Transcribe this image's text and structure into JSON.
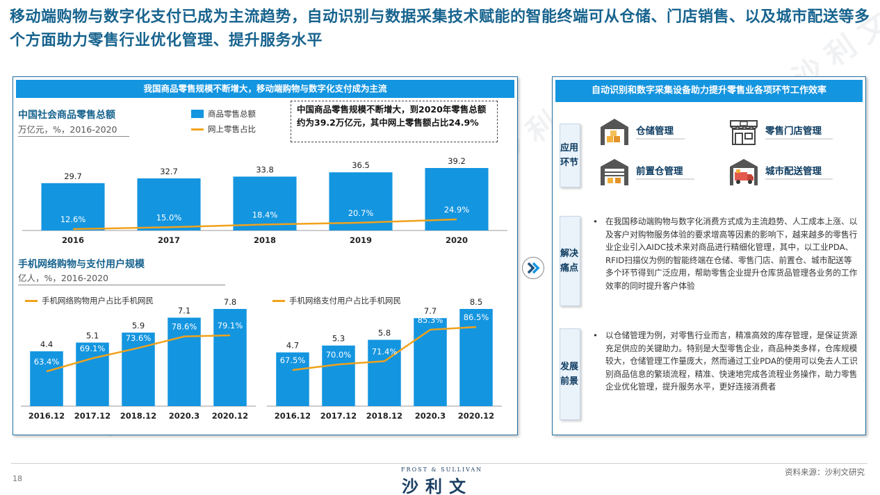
{
  "title": "移动端购物与数字化支付已成为主流趋势，自动识别与数据采集技术赋能的智能终端可从仓储、门店销售、以及城市配送等多个方面助力零售行业优化管理、提升服务水平",
  "left_panel": {
    "header": "我国商品零售规模不断增大，移动端购物与数字化支付成为主流",
    "chart1_title": "中国社会商品零售总额",
    "chart1_sub": "万亿元，%，2016-2020",
    "legend_bar": "商品零售总额",
    "legend_line": "网上零售占比",
    "note": "中国商品零售规模不断增大，到2020年零售总额约为39.2万亿元，其中网上零售额占比24.9%",
    "chart2_title": "手机网络购物与支付用户规模",
    "chart2_sub": "亿人，%，2016-2020",
    "legend_mobile_shop": "手机网络购物用户占比手机网民",
    "legend_mobile_pay": "手机网络支付用户占比手机网民"
  },
  "chart_data": [
    {
      "type": "bar",
      "title": "中国社会商品零售总额",
      "categories": [
        "2016",
        "2017",
        "2018",
        "2019",
        "2020"
      ],
      "series": [
        {
          "name": "商品零售总额",
          "type": "bar",
          "values": [
            29.7,
            32.7,
            33.8,
            36.5,
            39.2
          ],
          "labels": [
            "29.7",
            "32.7",
            "33.8",
            "36.5",
            "39.2"
          ]
        },
        {
          "name": "网上零售占比",
          "type": "line",
          "values": [
            12.6,
            15.0,
            18.4,
            20.7,
            24.9
          ],
          "labels": [
            "12.6%",
            "15.0%",
            "18.4%",
            "20.7%",
            "24.9%"
          ]
        }
      ]
    },
    {
      "type": "bar",
      "categories": [
        "2016.12",
        "2017.12",
        "2018.12",
        "2020.3",
        "2020.12"
      ],
      "series": [
        {
          "type": "bar",
          "values": [
            4.4,
            5.1,
            5.9,
            7.1,
            7.8
          ],
          "labels": [
            "4.4",
            "5.1",
            "5.9",
            "7.1",
            "7.8"
          ]
        },
        {
          "name": "手机网络购物用户占比手机网民",
          "type": "line",
          "values": [
            63.4,
            69.1,
            73.6,
            78.6,
            79.1
          ],
          "labels": [
            "63.4%",
            "69.1%",
            "73.6%",
            "78.6%",
            "79.1%"
          ]
        }
      ]
    },
    {
      "type": "bar",
      "categories": [
        "2016.12",
        "2017.12",
        "2018.12",
        "2020.3",
        "2020.12"
      ],
      "series": [
        {
          "type": "bar",
          "values": [
            4.7,
            5.3,
            5.8,
            7.7,
            8.5
          ],
          "labels": [
            "4.7",
            "5.3",
            "5.8",
            "7.7",
            "8.5"
          ]
        },
        {
          "name": "手机网络支付用户占比手机网民",
          "type": "line",
          "values": [
            67.5,
            70.0,
            71.4,
            85.3,
            86.5
          ],
          "labels": [
            "67.5%",
            "70.0%",
            "71.4%",
            "85.3%",
            "86.5%"
          ]
        }
      ]
    }
  ],
  "colors": {
    "bar": "#1495e0",
    "line": "#f1a21b",
    "title": "#17638e",
    "header": "#1495e0"
  },
  "right_panel": {
    "header": "自动识别和数字采集设备助力提升零售业各项环节工作效率",
    "tab_apply": "应用环节",
    "tab_solve": "解决痛点",
    "tab_dev": "发展前景",
    "apps": [
      {
        "label": "仓储管理",
        "icon": "warehouse-icon"
      },
      {
        "label": "零售门店管理",
        "icon": "store-icon"
      },
      {
        "label": "前置仓管理",
        "icon": "front-warehouse-icon"
      },
      {
        "label": "城市配送管理",
        "icon": "delivery-truck-icon"
      }
    ],
    "solve_text": "在我国移动端购物与数字化消费方式成为主流趋势、人工成本上涨、以及客户对购物服务体验的要求增高等因素的影响下，越来越多的零售行业企业引入AIDC技术来对商品进行精细化管理，其中，以工业PDA、RFID扫描仪为例的智能终端在仓储、零售门店、前置仓、城市配送等多个环节得到广泛应用，帮助零售企业提升仓库货品管理各业务的工作效率的同时提升客户体验",
    "dev_text": "以仓储管理为例，对零售行业而言，精准高效的库存管理，是保证货源充足供应的关键助力。特别是大型零售企业，商品种类多样，仓库规模较大，仓储管理工作量庞大，然而通过工业PDA的使用可以免去人工识别商品信息的繁琐流程，精准、快速地完成各流程业务操作，助力零售企业优化管理，提升服务水平，更好连接消费者"
  },
  "footer": {
    "page": "18",
    "logo_en": "FROST & SULLIVAN",
    "logo_cn": "沙利文",
    "source": "资料来源：沙利文研究"
  }
}
